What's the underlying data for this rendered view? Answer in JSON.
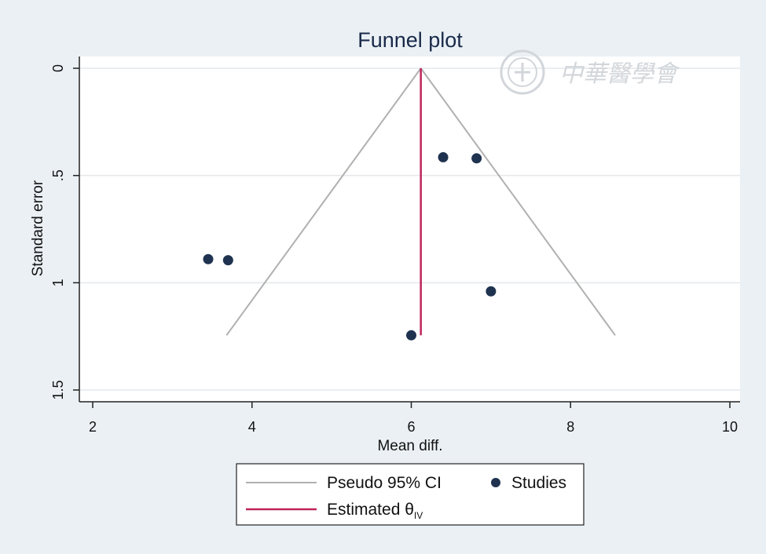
{
  "chart_data": {
    "type": "scatter",
    "title": "Funnel plot",
    "xlabel": "Mean diff.",
    "ylabel": "Standard error",
    "xlim": [
      2,
      10
    ],
    "ylim": [
      0,
      1.5
    ],
    "y_inverted": true,
    "x_ticks": [
      {
        "value": 2,
        "label": "2"
      },
      {
        "value": 4,
        "label": "4"
      },
      {
        "value": 6,
        "label": "6"
      },
      {
        "value": 8,
        "label": "8"
      },
      {
        "value": 10,
        "label": "10"
      }
    ],
    "y_ticks": [
      {
        "value": 0,
        "label": "0"
      },
      {
        "value": 0.5,
        "label": ".5"
      },
      {
        "value": 1,
        "label": "1"
      },
      {
        "value": 1.5,
        "label": "1.5"
      }
    ],
    "grid": true,
    "studies": [
      {
        "x": 3.45,
        "y": 0.89
      },
      {
        "x": 3.7,
        "y": 0.895
      },
      {
        "x": 6.4,
        "y": 0.415
      },
      {
        "x": 6.82,
        "y": 0.42
      },
      {
        "x": 7.0,
        "y": 1.04
      },
      {
        "x": 6.0,
        "y": 1.245
      }
    ],
    "estimate": {
      "x": 6.12,
      "y_from": 0,
      "y_to": 1.245
    },
    "pseudo_ci": {
      "apex": [
        6.12,
        0
      ],
      "left_base": [
        3.68,
        1.245
      ],
      "right_base": [
        8.56,
        1.245
      ]
    },
    "legend": {
      "placement": "bottom",
      "ci_label": "Pseudo 95% CI",
      "studies_label": "Studies",
      "estimate_label_main": "Estimated θ",
      "estimate_label_sub": "IV"
    },
    "colors": {
      "background": "#eaf0f4",
      "plot_area": "#ffffff",
      "ci_line": "#b0b0b0",
      "estimate_line": "#c0245a",
      "marker": "#1f3350",
      "title": "#1a2a4a"
    }
  },
  "watermark": {
    "text": "中華醫學會"
  }
}
